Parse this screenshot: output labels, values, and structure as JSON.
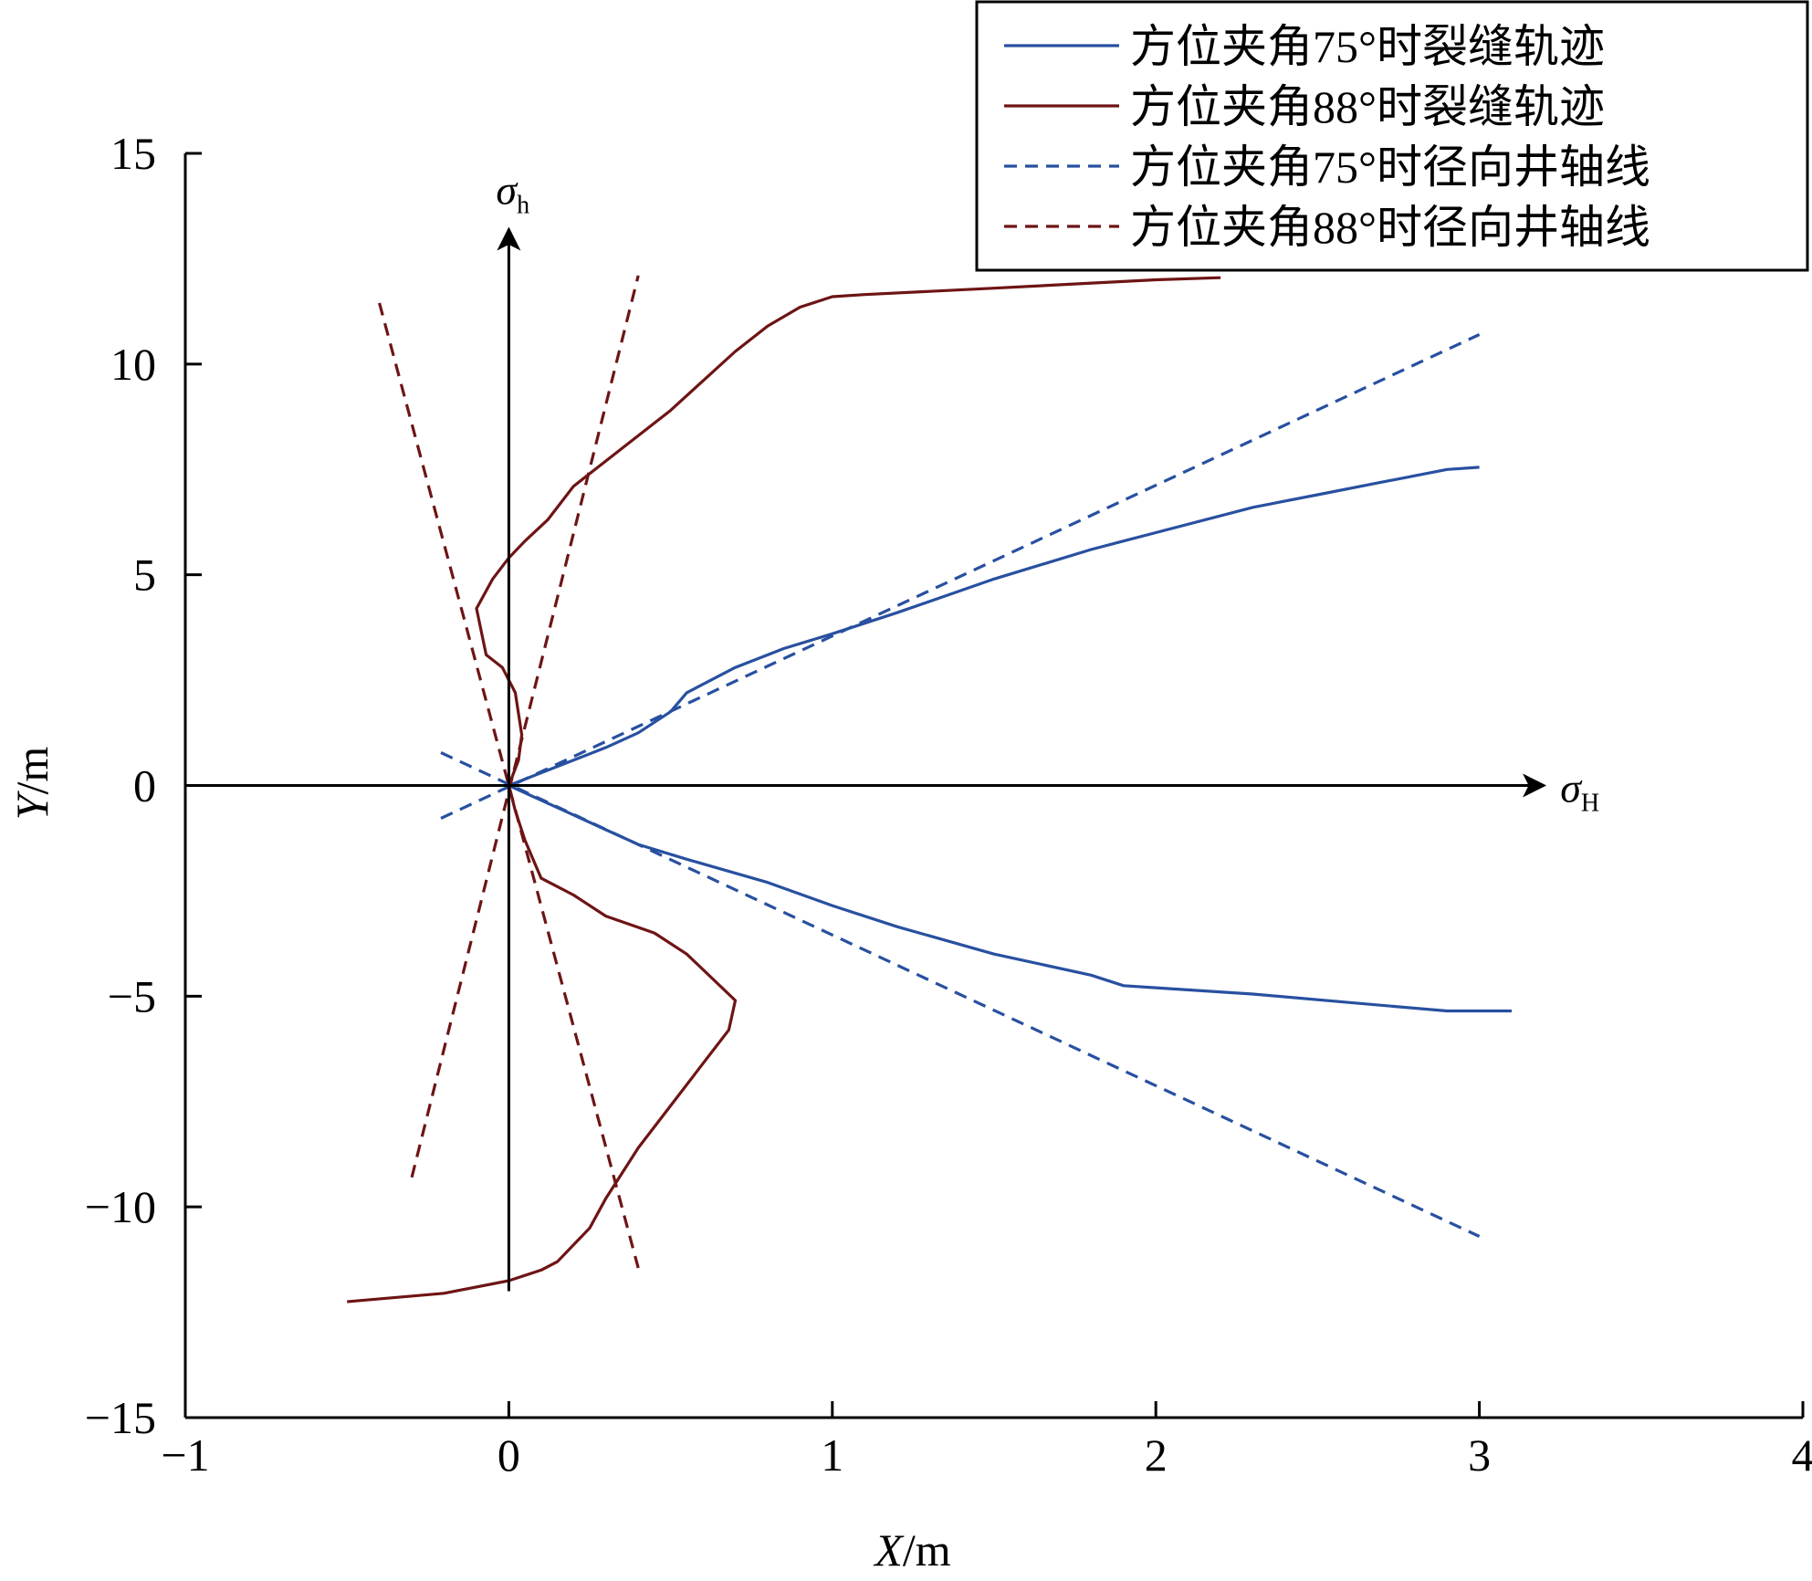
{
  "chart_data": {
    "type": "line",
    "title": "",
    "xlabel_var": "X",
    "xlabel_unit": "/m",
    "ylabel_var": "Y",
    "ylabel_unit": "/m",
    "xlim": [
      -1,
      4
    ],
    "ylim": [
      -15,
      15
    ],
    "xticks": [
      -1,
      0,
      1,
      2,
      3,
      4
    ],
    "yticks": [
      -15,
      -10,
      -5,
      0,
      5,
      10,
      15
    ],
    "xtick_labels": [
      "−1",
      "0",
      "1",
      "2",
      "3",
      "4"
    ],
    "ytick_labels": [
      "−15",
      "−10",
      "−5",
      "0",
      "5",
      "10",
      "15"
    ],
    "grid": false,
    "legend_position": "top-right",
    "colors": {
      "blue": "#2850a0",
      "darkred": "#6e1414",
      "axis": "#000000"
    },
    "stress_axes": {
      "sigma_H": {
        "symbol": "σ",
        "subscript": "H"
      },
      "sigma_h": {
        "symbol": "σ",
        "subscript": "h"
      }
    },
    "series": [
      {
        "name": "方位夹角75°时裂缝轨迹",
        "color": "#2850a0",
        "style": "solid",
        "paths": [
          [
            [
              0,
              0
            ],
            [
              0.1,
              0.3
            ],
            [
              0.2,
              0.6
            ],
            [
              0.3,
              0.9
            ],
            [
              0.4,
              1.25
            ],
            [
              0.5,
              1.75
            ],
            [
              0.55,
              2.2
            ],
            [
              0.7,
              2.8
            ],
            [
              0.85,
              3.25
            ],
            [
              1.0,
              3.6
            ],
            [
              1.2,
              4.1
            ],
            [
              1.5,
              4.9
            ],
            [
              1.8,
              5.6
            ],
            [
              1.9,
              5.8
            ],
            [
              2.0,
              6.0
            ],
            [
              2.3,
              6.6
            ],
            [
              2.5,
              6.9
            ],
            [
              2.7,
              7.2
            ],
            [
              2.9,
              7.5
            ],
            [
              3.0,
              7.55
            ]
          ],
          [
            [
              0,
              0
            ],
            [
              0.1,
              -0.35
            ],
            [
              0.2,
              -0.7
            ],
            [
              0.3,
              -1.05
            ],
            [
              0.4,
              -1.4
            ],
            [
              0.55,
              -1.75
            ],
            [
              0.8,
              -2.3
            ],
            [
              1.0,
              -2.85
            ],
            [
              1.2,
              -3.35
            ],
            [
              1.5,
              -4.0
            ],
            [
              1.8,
              -4.5
            ],
            [
              1.9,
              -4.75
            ],
            [
              2.0,
              -4.8
            ],
            [
              2.3,
              -4.95
            ],
            [
              2.6,
              -5.15
            ],
            [
              2.9,
              -5.35
            ],
            [
              3.1,
              -5.35
            ]
          ]
        ]
      },
      {
        "name": "方位夹角88°时裂缝轨迹",
        "color": "#6e1414",
        "style": "solid",
        "paths": [
          [
            [
              0,
              0
            ],
            [
              0.03,
              0.6
            ],
            [
              0.04,
              1.2
            ],
            [
              0.02,
              2.2
            ],
            [
              -0.02,
              2.8
            ],
            [
              -0.07,
              3.1
            ],
            [
              -0.1,
              4.2
            ],
            [
              -0.05,
              4.9
            ],
            [
              0.0,
              5.4
            ],
            [
              0.05,
              5.8
            ],
            [
              0.12,
              6.3
            ],
            [
              0.2,
              7.1
            ],
            [
              0.3,
              7.7
            ],
            [
              0.4,
              8.3
            ],
            [
              0.5,
              8.9
            ],
            [
              0.6,
              9.6
            ],
            [
              0.7,
              10.3
            ],
            [
              0.8,
              10.9
            ],
            [
              0.9,
              11.35
            ],
            [
              1.0,
              11.6
            ],
            [
              1.1,
              11.65
            ],
            [
              1.5,
              11.8
            ],
            [
              2.0,
              12.0
            ],
            [
              2.2,
              12.05
            ]
          ],
          [
            [
              0,
              0
            ],
            [
              0.02,
              -0.6
            ],
            [
              0.05,
              -1.3
            ],
            [
              0.1,
              -2.2
            ],
            [
              0.2,
              -2.6
            ],
            [
              0.3,
              -3.1
            ],
            [
              0.45,
              -3.5
            ],
            [
              0.55,
              -4.0
            ],
            [
              0.7,
              -5.1
            ],
            [
              0.68,
              -5.8
            ],
            [
              0.6,
              -6.6
            ],
            [
              0.5,
              -7.6
            ],
            [
              0.4,
              -8.6
            ],
            [
              0.3,
              -9.8
            ],
            [
              0.25,
              -10.5
            ],
            [
              0.15,
              -11.3
            ],
            [
              0.1,
              -11.5
            ],
            [
              0.0,
              -11.75
            ],
            [
              -0.2,
              -12.05
            ],
            [
              -0.5,
              -12.25
            ]
          ]
        ]
      },
      {
        "name": "方位夹角75°时径向井轴线",
        "color": "#2850a0",
        "style": "dashed",
        "paths": [
          [
            [
              -0.21,
              -0.78
            ],
            [
              3.0,
              10.7
            ]
          ],
          [
            [
              -0.21,
              0.78
            ],
            [
              3.0,
              -10.7
            ]
          ]
        ]
      },
      {
        "name": "方位夹角88°时径向井轴线",
        "color": "#6e1414",
        "style": "dashed",
        "paths": [
          [
            [
              -0.4,
              11.45
            ],
            [
              0.4,
              -11.45
            ]
          ],
          [
            [
              -0.3,
              -9.3
            ],
            [
              0.4,
              12.1
            ]
          ]
        ]
      }
    ]
  }
}
